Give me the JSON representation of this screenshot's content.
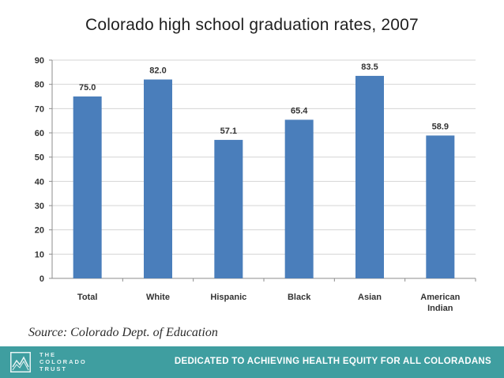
{
  "chart_data": {
    "type": "bar",
    "title": "Colorado high school graduation rates, 2007",
    "categories": [
      "Total",
      "White",
      "Hispanic",
      "Black",
      "Asian",
      "American Indian"
    ],
    "category_lines": [
      [
        "Total"
      ],
      [
        "White"
      ],
      [
        "Hispanic"
      ],
      [
        "Black"
      ],
      [
        "Asian"
      ],
      [
        "American",
        "Indian"
      ]
    ],
    "values": [
      75.0,
      82.0,
      57.1,
      65.4,
      83.5,
      58.9
    ],
    "value_labels": [
      "75.0",
      "82.0",
      "57.1",
      "65.4",
      "83.5",
      "58.9"
    ],
    "xlabel": "",
    "ylabel": "",
    "ylim": [
      0,
      90
    ],
    "yticks": [
      0,
      10,
      20,
      30,
      40,
      50,
      60,
      70,
      80,
      90
    ],
    "grid": true,
    "bar_color": "#4a7ebb"
  },
  "source": "Source: Colorado Dept. of Education",
  "footer": {
    "logo_lines": [
      "THE",
      "COLORADO",
      "TRUST"
    ],
    "tagline": "DEDICATED TO ACHIEVING HEALTH EQUITY FOR ALL COLORADANS",
    "background": "#3f9ea0"
  }
}
